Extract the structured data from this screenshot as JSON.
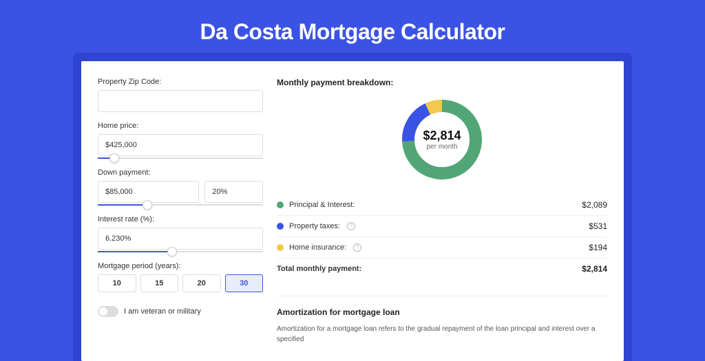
{
  "page": {
    "title": "Da Costa Mortgage Calculator",
    "background_color": "#3b53e4",
    "card_shadow_color": "#2f45d1"
  },
  "form": {
    "zip": {
      "label": "Property Zip Code:",
      "value": ""
    },
    "home_price": {
      "label": "Home price:",
      "value": "$425,000",
      "slider_pct": 10
    },
    "down_payment": {
      "label": "Down payment:",
      "amount": "$85,000",
      "percent": "20%",
      "slider_pct": 30
    },
    "interest_rate": {
      "label": "Interest rate (%):",
      "value": "6.230%",
      "slider_pct": 45
    },
    "period": {
      "label": "Mortgage period (years):",
      "options": [
        "10",
        "15",
        "20",
        "30"
      ],
      "selected_index": 3
    },
    "veteran": {
      "label": "I am veteran or military",
      "checked": false
    }
  },
  "breakdown": {
    "title": "Monthly payment breakdown:",
    "donut": {
      "total": "$2,814",
      "sub": "per month",
      "slices": [
        {
          "color": "#52a675",
          "pct": 74.2
        },
        {
          "color": "#3b53e4",
          "pct": 18.9
        },
        {
          "color": "#f2c94c",
          "pct": 6.9
        }
      ],
      "size": 120,
      "stroke": 18
    },
    "rows": [
      {
        "color": "#52a675",
        "label": "Principal & Interest:",
        "value": "$2,089",
        "info": false
      },
      {
        "color": "#3b53e4",
        "label": "Property taxes:",
        "value": "$531",
        "info": true
      },
      {
        "color": "#f2c94c",
        "label": "Home insurance:",
        "value": "$194",
        "info": true
      }
    ],
    "total_row": {
      "label": "Total monthly payment:",
      "value": "$2,814"
    }
  },
  "amortization": {
    "title": "Amortization for mortgage loan",
    "text": "Amortization for a mortgage loan refers to the gradual repayment of the loan principal and interest over a specified"
  }
}
